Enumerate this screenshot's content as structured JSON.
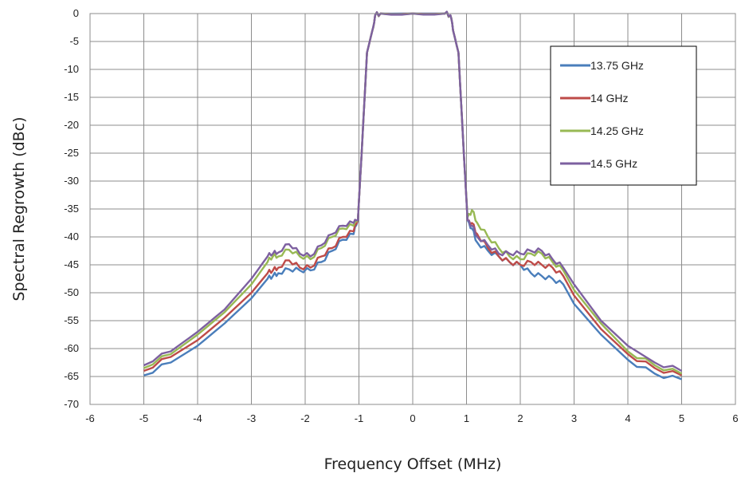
{
  "chart_data": {
    "type": "line",
    "title": "",
    "xlabel": "Frequency Offset (MHz)",
    "ylabel": "Spectral Regrowth (dBc)",
    "xlim": [
      -6,
      6
    ],
    "ylim": [
      -70,
      0
    ],
    "xticks": [
      -6,
      -5,
      -4,
      -3,
      -2,
      -1,
      0,
      1,
      2,
      3,
      4,
      5,
      6
    ],
    "yticks": [
      0,
      -5,
      -10,
      -15,
      -20,
      -25,
      -30,
      -35,
      -40,
      -45,
      -50,
      -55,
      -60,
      -65,
      -70
    ],
    "grid": true,
    "legend_position": "top-right",
    "series": [
      {
        "name": "13.75 GHz",
        "color": "#4a7ebb",
        "x": [
          -5,
          -4.5,
          -4,
          -3.5,
          -3,
          -2.7,
          -2.6,
          -2.5,
          -2.3,
          -2.1,
          -1.9,
          -1.7,
          -1.5,
          -1.3,
          -1.1,
          -1.02,
          -0.95,
          -0.85,
          -0.75,
          -0.7,
          -0.6,
          0,
          0.6,
          0.7,
          0.75,
          0.85,
          0.95,
          1.02,
          1.1,
          1.2,
          1.4,
          1.6,
          1.8,
          2.0,
          2.2,
          2.4,
          2.6,
          2.8,
          3.0,
          3.5,
          4.0,
          4.5,
          5.0
        ],
        "y": [
          -64.8,
          -62.5,
          -59.5,
          -55.5,
          -51,
          -47.5,
          -47,
          -46.5,
          -45.8,
          -46,
          -46,
          -44.5,
          -42.5,
          -40.5,
          -39.5,
          -37,
          -25,
          -7,
          -3,
          -0.3,
          0,
          0,
          0,
          -0.3,
          -3,
          -7,
          -25,
          -37,
          -38.5,
          -41,
          -42.5,
          -43.5,
          -44.5,
          -45,
          -46.5,
          -47,
          -47.5,
          -48.5,
          -52,
          -57.5,
          -62,
          -64.5,
          -65.5
        ]
      },
      {
        "name": "14 GHz",
        "color": "#be4b48",
        "x": [
          -5,
          -4.5,
          -4,
          -3.5,
          -3,
          -2.7,
          -2.6,
          -2.5,
          -2.3,
          -2.1,
          -1.9,
          -1.7,
          -1.5,
          -1.3,
          -1.1,
          -1.02,
          -0.95,
          -0.85,
          -0.75,
          -0.7,
          -0.6,
          0,
          0.6,
          0.7,
          0.75,
          0.85,
          0.95,
          1.02,
          1.1,
          1.2,
          1.4,
          1.6,
          1.8,
          2.0,
          2.2,
          2.4,
          2.6,
          2.8,
          3.0,
          3.5,
          4.0,
          4.5,
          5.0
        ],
        "y": [
          -64,
          -61.5,
          -58.5,
          -54.5,
          -50,
          -46.5,
          -46,
          -45.5,
          -44.2,
          -45.5,
          -45.5,
          -43.5,
          -42,
          -40,
          -39,
          -37,
          -25,
          -7,
          -3,
          -0.3,
          0,
          0,
          0,
          -0.3,
          -3,
          -7,
          -25,
          -37,
          -37.5,
          -39.5,
          -42,
          -43.5,
          -44.5,
          -45,
          -44.5,
          -45,
          -45.5,
          -47,
          -50.5,
          -56.5,
          -61,
          -63.5,
          -64.8
        ]
      },
      {
        "name": "14.25 GHz",
        "color": "#98b954",
        "x": [
          -5,
          -4.5,
          -4,
          -3.5,
          -3,
          -2.7,
          -2.6,
          -2.5,
          -2.3,
          -2.1,
          -1.9,
          -1.7,
          -1.5,
          -1.3,
          -1.1,
          -1.02,
          -0.95,
          -0.85,
          -0.75,
          -0.7,
          -0.6,
          0,
          0.6,
          0.7,
          0.75,
          0.85,
          0.95,
          1.02,
          1.1,
          1.2,
          1.4,
          1.6,
          1.8,
          2.0,
          2.2,
          2.4,
          2.6,
          2.8,
          3.0,
          3.5,
          4.0,
          4.5,
          5.0
        ],
        "y": [
          -63.5,
          -61,
          -57.5,
          -53.5,
          -48.5,
          -44.5,
          -43.5,
          -43.5,
          -42.3,
          -43.5,
          -44,
          -42,
          -40,
          -38.5,
          -38,
          -37,
          -25,
          -7,
          -3,
          -0.3,
          0,
          0,
          0,
          -0.3,
          -3,
          -7,
          -25,
          -36.5,
          -35.2,
          -37.5,
          -40,
          -42,
          -43.5,
          -44,
          -43,
          -43,
          -44.5,
          -46,
          -49.5,
          -55.5,
          -60.5,
          -63,
          -64.5
        ]
      },
      {
        "name": "14.5 GHz",
        "color": "#7d60a0",
        "x": [
          -5,
          -4.5,
          -4,
          -3.5,
          -3,
          -2.7,
          -2.6,
          -2.5,
          -2.3,
          -2.1,
          -1.9,
          -1.7,
          -1.5,
          -1.3,
          -1.1,
          -1.02,
          -0.95,
          -0.85,
          -0.75,
          -0.7,
          -0.6,
          0,
          0.6,
          0.7,
          0.75,
          0.85,
          0.95,
          1.02,
          1.1,
          1.2,
          1.4,
          1.6,
          1.8,
          2.0,
          2.2,
          2.4,
          2.6,
          2.8,
          3.0,
          3.5,
          4.0,
          4.5,
          5.0
        ],
        "y": [
          -63,
          -60.5,
          -57,
          -53,
          -47.5,
          -43.5,
          -43,
          -42.8,
          -41.3,
          -43,
          -43.5,
          -41.5,
          -39.5,
          -38,
          -37.5,
          -37,
          -25,
          -7,
          -3,
          -0.3,
          0,
          0,
          0,
          -0.3,
          -3,
          -7,
          -25,
          -37,
          -38,
          -40,
          -41.5,
          -43,
          -43,
          -43,
          -42.5,
          -42.5,
          -44,
          -45.5,
          -48.5,
          -55,
          -59.5,
          -62.5,
          -64
        ]
      }
    ]
  }
}
